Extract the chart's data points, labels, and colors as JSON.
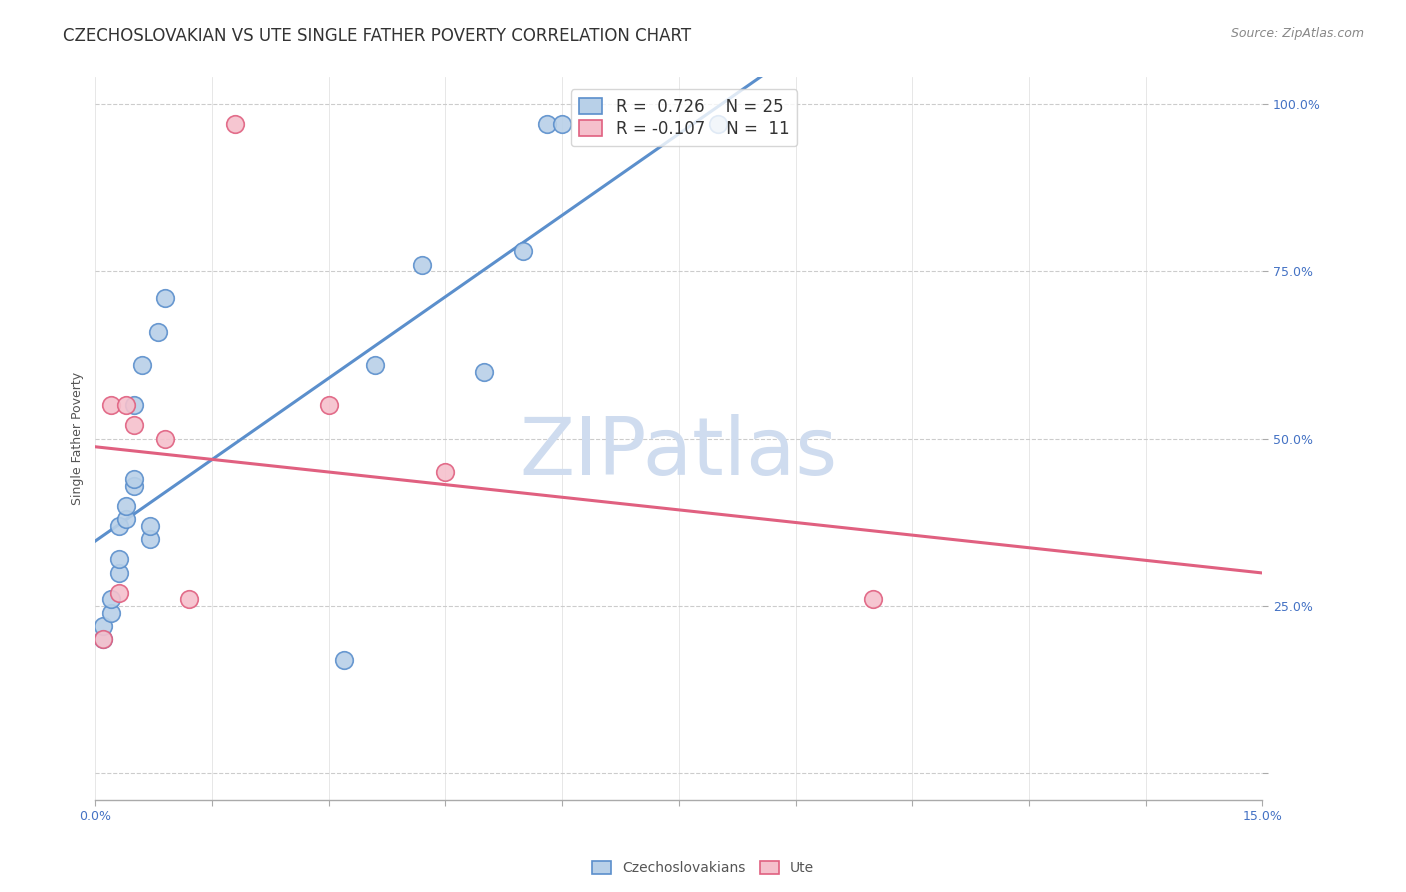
{
  "title": "CZECHOSLOVAKIAN VS UTE SINGLE FATHER POVERTY CORRELATION CHART",
  "source": "Source: ZipAtlas.com",
  "ylabel": "Single Father Poverty",
  "xlim": [
    0.0,
    0.15
  ],
  "ylim": [
    -0.04,
    1.04
  ],
  "xticks": [
    0.0,
    0.015,
    0.03,
    0.045,
    0.06,
    0.075,
    0.09,
    0.105,
    0.12,
    0.135,
    0.15
  ],
  "ytick_positions": [
    0.0,
    0.25,
    0.5,
    0.75,
    1.0
  ],
  "ytick_labels": [
    "",
    "25.0%",
    "50.0%",
    "75.0%",
    "100.0%"
  ],
  "czech_color": "#b8d0e8",
  "ute_color": "#f5c0cc",
  "czech_line_color": "#5b8fcc",
  "ute_line_color": "#e06080",
  "background_color": "#ffffff",
  "watermark_text": "ZIPatlas",
  "watermark_color": "#cfdcef",
  "czech_x": [
    0.001,
    0.001,
    0.002,
    0.002,
    0.003,
    0.003,
    0.003,
    0.004,
    0.004,
    0.005,
    0.005,
    0.005,
    0.006,
    0.007,
    0.007,
    0.008,
    0.009,
    0.032,
    0.036,
    0.042,
    0.05,
    0.055,
    0.058,
    0.06,
    0.08
  ],
  "czech_y": [
    0.2,
    0.22,
    0.24,
    0.26,
    0.3,
    0.32,
    0.37,
    0.38,
    0.4,
    0.43,
    0.44,
    0.55,
    0.61,
    0.35,
    0.37,
    0.66,
    0.71,
    0.17,
    0.61,
    0.76,
    0.6,
    0.78,
    0.97,
    0.97,
    0.97
  ],
  "ute_x": [
    0.001,
    0.002,
    0.003,
    0.004,
    0.005,
    0.009,
    0.012,
    0.018,
    0.03,
    0.045,
    0.1
  ],
  "ute_y": [
    0.2,
    0.55,
    0.27,
    0.55,
    0.52,
    0.5,
    0.26,
    0.97,
    0.55,
    0.45,
    0.26
  ],
  "title_fontsize": 12,
  "axis_label_fontsize": 9,
  "tick_fontsize": 9,
  "legend_fontsize": 12,
  "source_fontsize": 9
}
